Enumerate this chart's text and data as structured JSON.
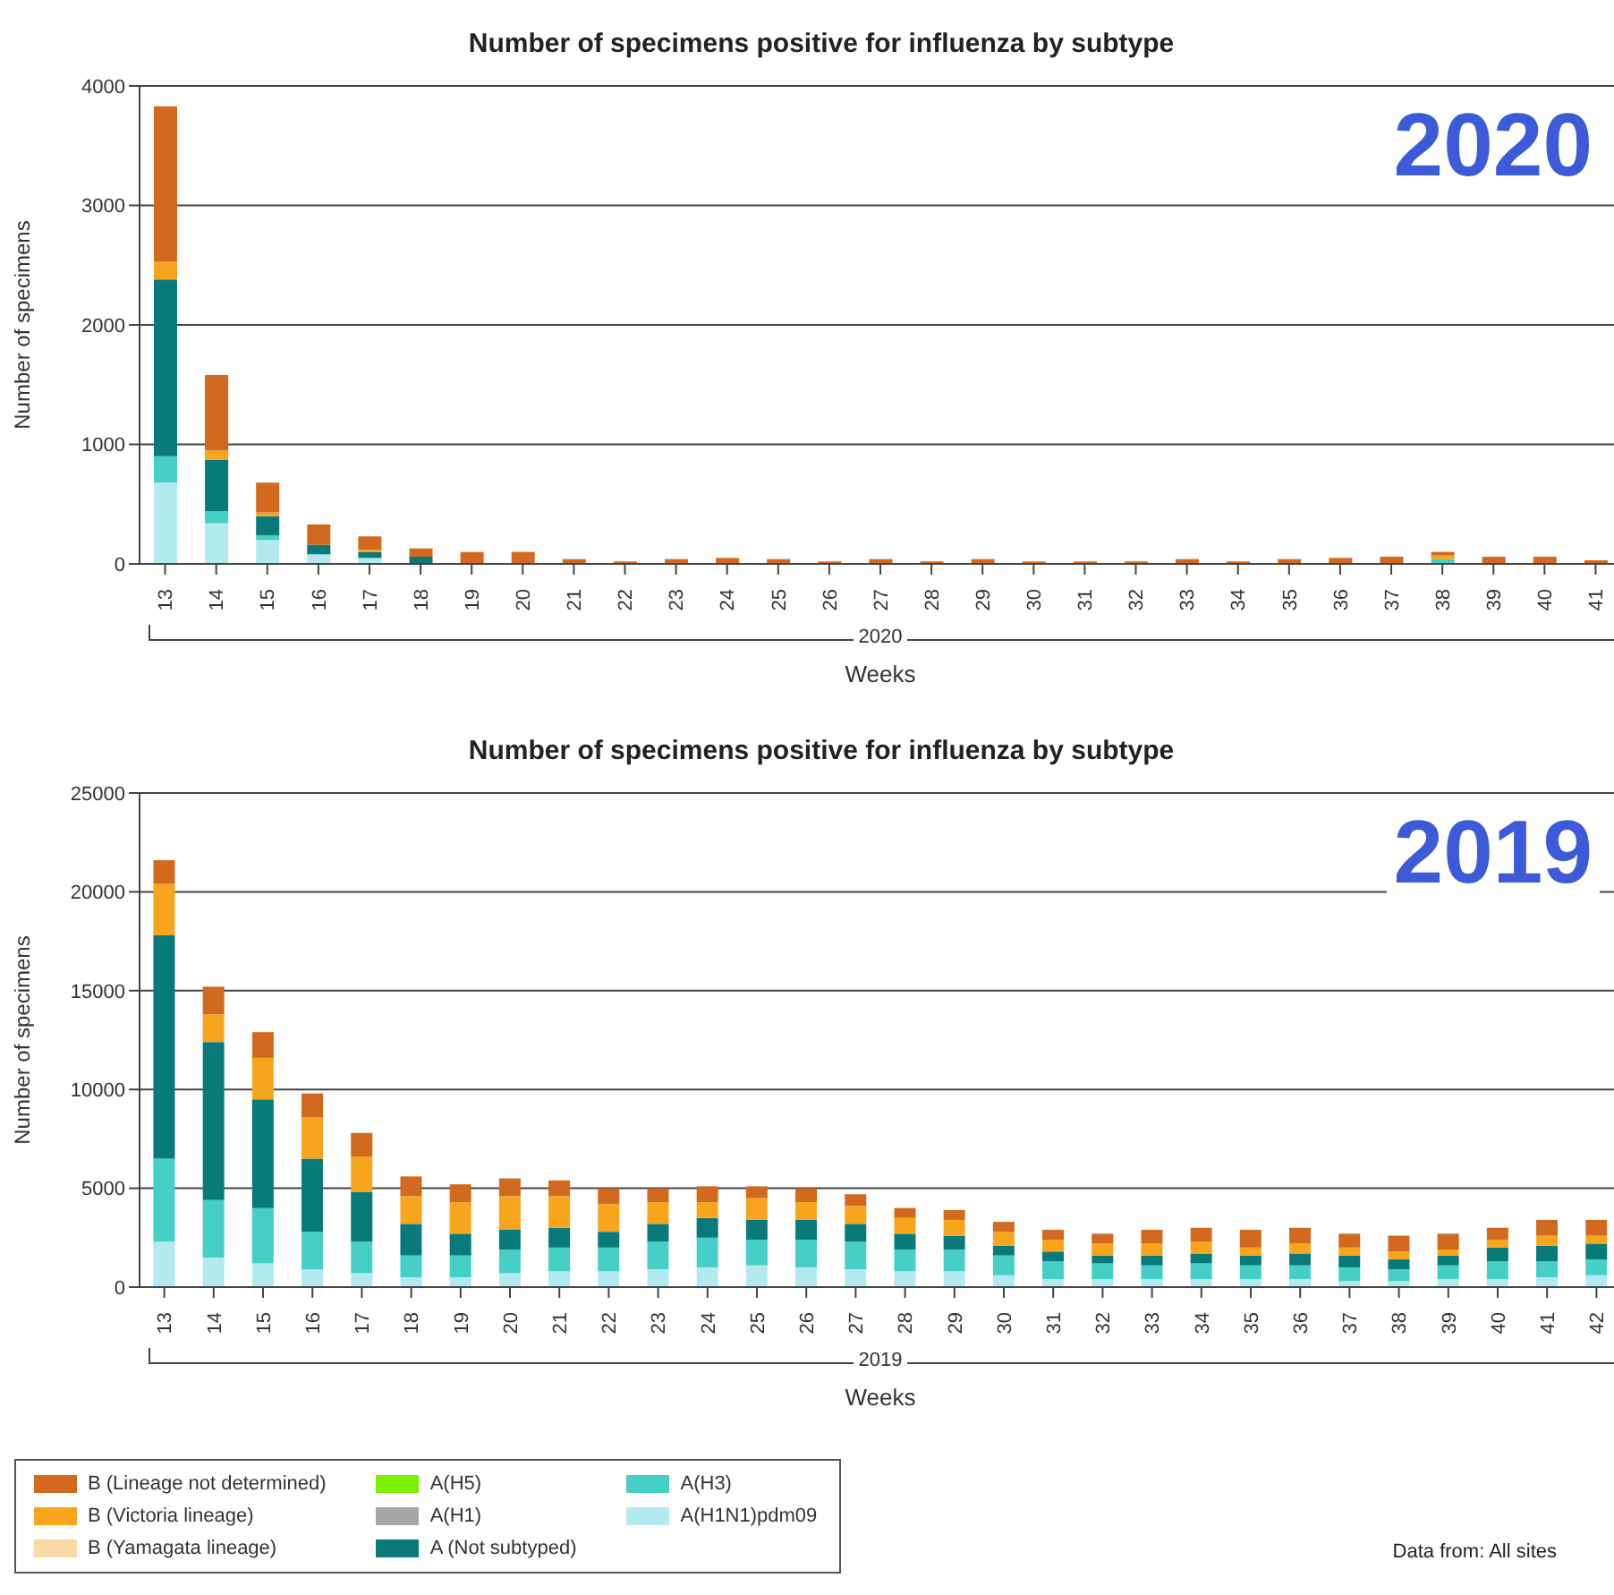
{
  "chart_data": [
    {
      "type": "bar",
      "title": "Number of specimens positive for influenza by subtype",
      "xlabel": "Weeks",
      "ylabel": "Number of specimens",
      "stacked": true,
      "grid": "y",
      "legend": false,
      "annotations": [
        "2020",
        "2020"
      ],
      "categories": [
        "13",
        "14",
        "15",
        "16",
        "17",
        "18",
        "19",
        "20",
        "21",
        "22",
        "23",
        "24",
        "25",
        "26",
        "27",
        "28",
        "29",
        "30",
        "31",
        "32",
        "33",
        "34",
        "35",
        "36",
        "37",
        "38",
        "39",
        "40",
        "41"
      ],
      "ylim": [
        0,
        4000
      ],
      "yticks": [
        0,
        1000,
        2000,
        3000,
        4000
      ],
      "series": [
        {
          "color": "#b3eaf0",
          "values": [
            680,
            340,
            200,
            80,
            50,
            0,
            0,
            0,
            0,
            0,
            0,
            0,
            0,
            0,
            0,
            0,
            0,
            0,
            0,
            0,
            0,
            0,
            0,
            0,
            0,
            0,
            0,
            0,
            0
          ]
        },
        {
          "color": "#45cfc6",
          "values": [
            220,
            100,
            40,
            0,
            0,
            0,
            0,
            0,
            0,
            0,
            0,
            0,
            0,
            0,
            0,
            0,
            0,
            0,
            0,
            0,
            0,
            0,
            0,
            0,
            0,
            40,
            0,
            0,
            0
          ]
        },
        {
          "color": "#087a7a",
          "values": [
            1480,
            430,
            160,
            80,
            50,
            60,
            0,
            0,
            0,
            0,
            0,
            0,
            0,
            0,
            0,
            0,
            0,
            0,
            0,
            0,
            0,
            0,
            0,
            0,
            0,
            0,
            0,
            0,
            0
          ]
        },
        {
          "color": "#f7a51c",
          "values": [
            150,
            80,
            30,
            0,
            20,
            0,
            0,
            0,
            0,
            0,
            0,
            0,
            0,
            0,
            0,
            0,
            0,
            0,
            0,
            0,
            0,
            0,
            0,
            0,
            0,
            30,
            0,
            0,
            0
          ]
        },
        {
          "color": "#d2691e",
          "values": [
            1300,
            630,
            250,
            170,
            110,
            70,
            100,
            100,
            40,
            20,
            40,
            50,
            40,
            20,
            40,
            20,
            40,
            20,
            20,
            20,
            40,
            20,
            40,
            50,
            60,
            30,
            60,
            60,
            30
          ]
        }
      ]
    },
    {
      "type": "bar",
      "title": "Number of specimens positive for influenza by subtype",
      "xlabel": "Weeks",
      "ylabel": "Number of specimens",
      "stacked": true,
      "grid": "y",
      "legend": "bottom left",
      "annotations": [
        "2019",
        "2019",
        "Data from: All sites"
      ],
      "categories": [
        "13",
        "14",
        "15",
        "16",
        "17",
        "18",
        "19",
        "20",
        "21",
        "22",
        "23",
        "24",
        "25",
        "26",
        "27",
        "28",
        "29",
        "30",
        "31",
        "32",
        "33",
        "34",
        "35",
        "36",
        "37",
        "38",
        "39",
        "40",
        "41",
        "42"
      ],
      "ylim": [
        0,
        25000
      ],
      "yticks": [
        0,
        5000,
        10000,
        15000,
        20000,
        25000
      ],
      "series": [
        {
          "name": "A(H1N1)pdm09",
          "color": "#b3eaf0",
          "values": [
            2300,
            1500,
            1200,
            900,
            700,
            500,
            500,
            700,
            800,
            800,
            900,
            1000,
            1100,
            1000,
            900,
            800,
            800,
            600,
            400,
            400,
            400,
            400,
            400,
            400,
            300,
            300,
            400,
            400,
            500,
            600
          ]
        },
        {
          "name": "A(H3)",
          "color": "#45cfc6",
          "values": [
            4200,
            2900,
            2800,
            1900,
            1600,
            1100,
            1100,
            1200,
            1200,
            1200,
            1400,
            1500,
            1300,
            1400,
            1400,
            1100,
            1100,
            1000,
            900,
            800,
            700,
            800,
            700,
            700,
            700,
            600,
            700,
            900,
            800,
            800
          ]
        },
        {
          "name": "A (Not subtyped)",
          "color": "#087a7a",
          "values": [
            11300,
            8000,
            5500,
            3700,
            2500,
            1600,
            1100,
            1000,
            1000,
            800,
            900,
            1000,
            1000,
            1000,
            900,
            800,
            700,
            500,
            500,
            400,
            500,
            500,
            500,
            600,
            600,
            500,
            500,
            700,
            800,
            800
          ]
        },
        {
          "name": "A(H1)",
          "color": "#a6a6a6",
          "values": [
            0,
            0,
            0,
            0,
            0,
            0,
            0,
            0,
            0,
            0,
            0,
            0,
            0,
            0,
            0,
            0,
            0,
            0,
            0,
            0,
            0,
            0,
            0,
            0,
            0,
            0,
            0,
            0,
            0,
            0
          ]
        },
        {
          "name": "A(H5)",
          "color": "#7cf000",
          "values": [
            0,
            0,
            0,
            0,
            0,
            0,
            0,
            0,
            0,
            0,
            0,
            0,
            0,
            0,
            0,
            0,
            0,
            0,
            0,
            0,
            0,
            0,
            0,
            0,
            0,
            0,
            0,
            0,
            0,
            0
          ]
        },
        {
          "name": "B (Yamagata lineage)",
          "color": "#f9d9a6",
          "values": [
            0,
            0,
            0,
            0,
            0,
            0,
            0,
            0,
            0,
            0,
            0,
            0,
            0,
            0,
            0,
            0,
            0,
            0,
            0,
            0,
            0,
            0,
            0,
            0,
            0,
            0,
            0,
            0,
            0,
            0
          ]
        },
        {
          "name": "B (Victoria lineage)",
          "color": "#f7a51c",
          "values": [
            2600,
            1400,
            2100,
            2100,
            1800,
            1400,
            1600,
            1700,
            1600,
            1400,
            1100,
            800,
            1100,
            900,
            900,
            800,
            800,
            700,
            600,
            600,
            600,
            600,
            400,
            500,
            400,
            400,
            300,
            400,
            500,
            400
          ]
        },
        {
          "name": "B (Lineage not determined)",
          "color": "#d2691e",
          "values": [
            1200,
            1400,
            1300,
            1200,
            1200,
            1000,
            900,
            900,
            800,
            800,
            700,
            800,
            600,
            700,
            600,
            500,
            500,
            500,
            500,
            500,
            700,
            700,
            900,
            800,
            700,
            800,
            800,
            600,
            800,
            800
          ]
        }
      ]
    }
  ]
}
